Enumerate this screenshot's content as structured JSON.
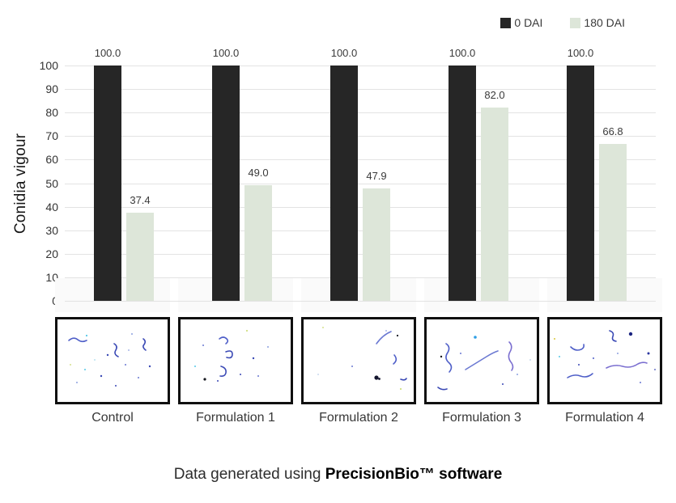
{
  "chart_data": {
    "type": "bar",
    "categories": [
      "Control",
      "Formulation 1",
      "Formulation 2",
      "Formulation 3",
      "Formulation 4"
    ],
    "series": [
      {
        "name": "0 DAI",
        "color": "#262626",
        "values": [
          100.0,
          100.0,
          100.0,
          100.0,
          100.0
        ]
      },
      {
        "name": "180 DAI",
        "color": "#dde6d9",
        "values": [
          37.4,
          49.0,
          47.9,
          82.0,
          66.8
        ]
      }
    ],
    "title": "",
    "xlabel": "",
    "ylabel": "Conidia vigour",
    "ylim": [
      0,
      100
    ],
    "ytick_step": 10,
    "grid": true,
    "legend_position": "top-right",
    "value_label_decimals": 1
  },
  "micrographs": {
    "panels": [
      {
        "label": "Control"
      },
      {
        "label": "Formulation 1"
      },
      {
        "label": "Formulation 2"
      },
      {
        "label": "Formulation 3"
      },
      {
        "label": "Formulation 4"
      }
    ]
  },
  "caption": {
    "prefix": "Data generated using ",
    "brand": "PrecisionBio™ software"
  },
  "colors": {
    "bar_dark": "#262626",
    "bar_light": "#dde6d9",
    "gridline": "#e3e3e3",
    "conidia_blue": "#3a49b5"
  }
}
